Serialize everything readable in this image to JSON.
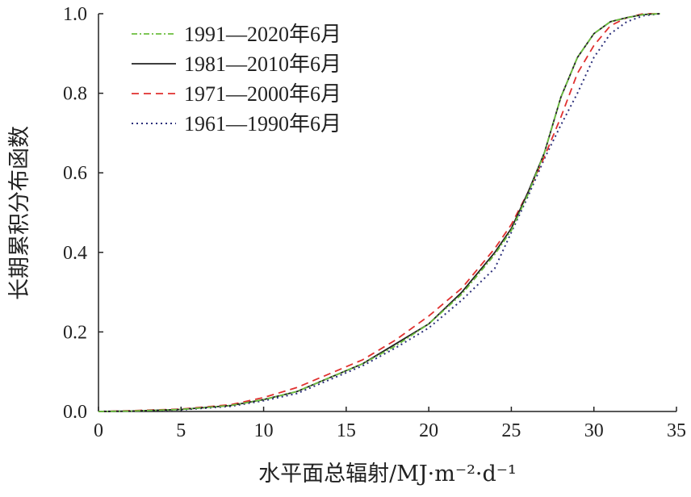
{
  "chart_data": {
    "type": "line",
    "title": "",
    "xlabel": "水平面总辐射/MJ·m⁻²·d⁻¹",
    "ylabel": "长期累积分布函数",
    "xlim": [
      0,
      35
    ],
    "ylim": [
      0,
      1.0
    ],
    "xticks": [
      "0",
      "5",
      "10",
      "15",
      "20",
      "25",
      "30",
      "35"
    ],
    "yticks": [
      "0.0",
      "0.2",
      "0.4",
      "0.6",
      "0.8",
      "1.0"
    ],
    "grid": false,
    "legend_position": "top-left",
    "x": [
      0,
      2,
      5,
      8,
      10,
      12,
      14,
      16,
      18,
      20,
      22,
      24,
      25,
      26,
      27,
      28,
      29,
      30,
      31,
      32,
      33,
      34
    ],
    "series": [
      {
        "name": "1991—2020年6月",
        "color": "#6cbf3f",
        "style": "dashdot",
        "values": [
          0,
          0.001,
          0.005,
          0.015,
          0.03,
          0.05,
          0.085,
          0.12,
          0.165,
          0.22,
          0.295,
          0.395,
          0.455,
          0.545,
          0.65,
          0.79,
          0.89,
          0.95,
          0.98,
          0.99,
          0.998,
          1.0
        ]
      },
      {
        "name": "1981—2010年6月",
        "color": "#222222",
        "style": "solid",
        "values": [
          0,
          0.001,
          0.005,
          0.015,
          0.03,
          0.05,
          0.085,
          0.12,
          0.17,
          0.22,
          0.3,
          0.4,
          0.46,
          0.55,
          0.65,
          0.79,
          0.89,
          0.95,
          0.98,
          0.99,
          0.998,
          1.0
        ]
      },
      {
        "name": "1971—2000年6月",
        "color": "#e0302f",
        "style": "dashed",
        "values": [
          0,
          0.002,
          0.006,
          0.017,
          0.035,
          0.06,
          0.095,
          0.13,
          0.18,
          0.24,
          0.31,
          0.41,
          0.47,
          0.55,
          0.64,
          0.74,
          0.85,
          0.92,
          0.97,
          0.99,
          1.0,
          1.0
        ]
      },
      {
        "name": "1961—1990年6月",
        "color": "#2b2f7a",
        "style": "dotted",
        "values": [
          0,
          0.001,
          0.004,
          0.013,
          0.027,
          0.045,
          0.08,
          0.115,
          0.16,
          0.21,
          0.28,
          0.36,
          0.45,
          0.54,
          0.635,
          0.72,
          0.8,
          0.89,
          0.95,
          0.98,
          0.995,
          1.0
        ]
      }
    ]
  }
}
